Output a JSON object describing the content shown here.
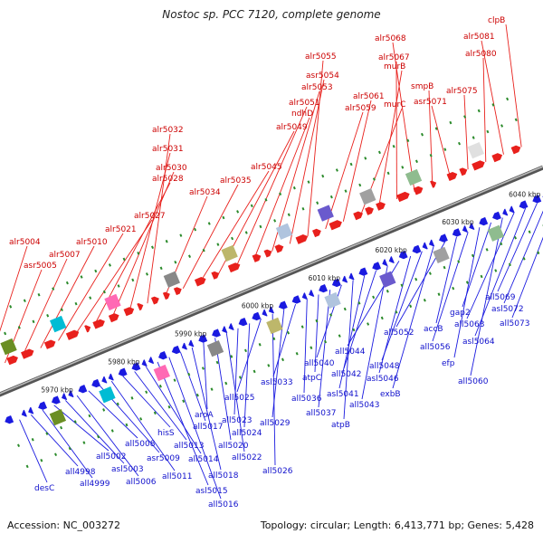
{
  "title": "Nostoc sp. PCC 7120, complete genome",
  "accession": "Accession: NC_003272",
  "topology": "Topology: circular; Length: 6,413,771 bp; Genes: 5,428",
  "colors": {
    "forward_gene": "#e8201c",
    "reverse_gene": "#1a1ae0",
    "backbone": "#777777",
    "tick": "#2a8a2a",
    "forward_label": "#cc0000",
    "reverse_label": "#1010cc"
  },
  "genome_map": {
    "kbp_ticks": [
      "5970 kbp",
      "5980 kbp",
      "5990 kbp",
      "6000 kbp",
      "6010 kbp",
      "6020 kbp",
      "6030 kbp",
      "6040 kbp"
    ],
    "forward_genes": [
      "alr5004",
      "asr5005",
      "alr5007",
      "alr5010",
      "alr5021",
      "alr5027",
      "alr5028",
      "alr5030",
      "alr5031",
      "alr5032",
      "alr5034",
      "alr5035",
      "alr5045",
      "alr5049",
      "alr5051",
      "ndhD",
      "alr5053",
      "asr5054",
      "alr5055",
      "alr5059",
      "alr5061",
      "murC",
      "murB",
      "alr5067",
      "alr5068",
      "smpB",
      "asr5071",
      "alr5075",
      "alr5080",
      "alr5081",
      "clpB"
    ],
    "reverse_genes": [
      "desC",
      "all4998",
      "all4999",
      "all5002",
      "asl5003",
      "all5006",
      "all5008",
      "asr5009",
      "all5011",
      "hisS",
      "all5013",
      "all5014",
      "asl5015",
      "all5016",
      "all5017",
      "all5018",
      "aroA",
      "all5020",
      "all5022",
      "all5023",
      "all5024",
      "all5025",
      "all5026",
      "all5029",
      "asl5033",
      "all5036",
      "atpC",
      "all5037",
      "all5040",
      "atpB",
      "asl5041",
      "all5042",
      "all5043",
      "all5044",
      "asl5046",
      "all5048",
      "exbB",
      "all5052",
      "accB",
      "all5056",
      "efp",
      "gap2",
      "all5060",
      "all5063",
      "asl5064",
      "all5069",
      "asl5072",
      "all5073"
    ]
  }
}
